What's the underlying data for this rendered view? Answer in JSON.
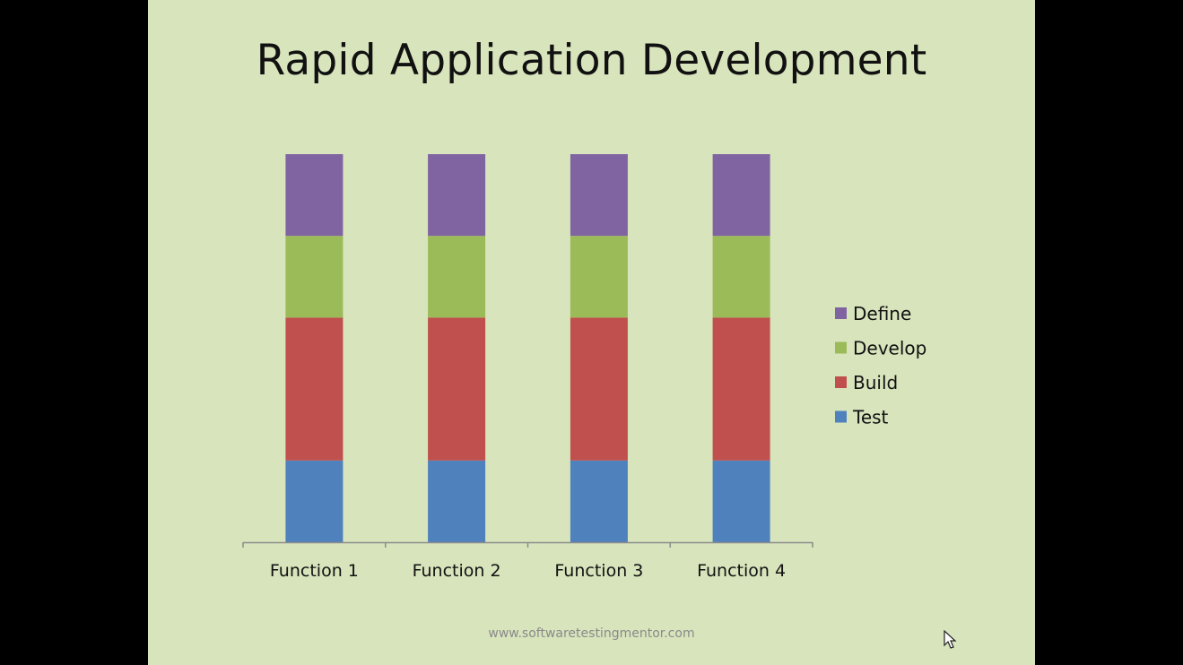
{
  "slide": {
    "footer": "www.softwaretestingmentor.com"
  },
  "colors": {
    "background": "#d8e4bc",
    "Define": "#8064a2",
    "Develop": "#9bbb59",
    "Build": "#c0504d",
    "Test": "#4f81bd"
  },
  "chart_data": {
    "type": "bar",
    "stacked": true,
    "title": "Rapid Application Development",
    "xlabel": "",
    "ylabel": "",
    "categories": [
      "Function 1",
      "Function 2",
      "Function 3",
      "Function 4"
    ],
    "series": [
      {
        "name": "Test",
        "values": [
          2,
          2,
          2,
          2
        ]
      },
      {
        "name": "Build",
        "values": [
          3.5,
          3.5,
          3.5,
          3.5
        ]
      },
      {
        "name": "Develop",
        "values": [
          2,
          2,
          2,
          2
        ]
      },
      {
        "name": "Define",
        "values": [
          2,
          2,
          2,
          2
        ]
      }
    ],
    "legend_order": [
      "Define",
      "Develop",
      "Build",
      "Test"
    ],
    "legend_position": "right",
    "grid": false,
    "y_axis_visible": false
  }
}
